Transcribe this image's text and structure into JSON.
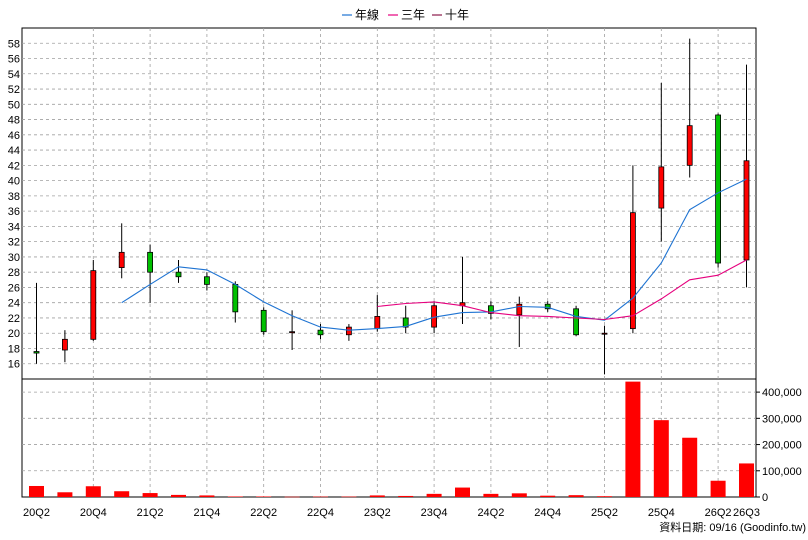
{
  "chart_data": {
    "type": "candlestick",
    "legend": [
      {
        "label": "年線",
        "color": "#1e73d2"
      },
      {
        "label": "三年",
        "color": "#e6007e"
      },
      {
        "label": "十年",
        "color": "#8b1a4b"
      }
    ],
    "source": "資料日期: 09/16  (Goodinfo.tw)",
    "price_axis": {
      "ylim": [
        14,
        60
      ],
      "ticks": [
        16,
        18,
        20,
        22,
        24,
        26,
        28,
        30,
        32,
        34,
        36,
        38,
        40,
        42,
        44,
        46,
        48,
        50,
        52,
        54,
        56,
        58
      ]
    },
    "volume_axis": {
      "ylim": [
        0,
        450000
      ],
      "ticks": [
        0,
        100000,
        200000,
        300000,
        400000
      ],
      "tick_labels": [
        "0",
        "100,000",
        "200,000",
        "300,000",
        "400,000"
      ]
    },
    "grid": true,
    "colors": {
      "up": "#ff0000",
      "down": "#00c000",
      "volume": "#ff0000",
      "grid": "#a0a0a0"
    },
    "x_tick_labels": [
      {
        "label": "20Q2",
        "index": 0
      },
      {
        "label": "20Q4",
        "index": 2
      },
      {
        "label": "21Q2",
        "index": 4
      },
      {
        "label": "21Q4",
        "index": 6
      },
      {
        "label": "22Q2",
        "index": 8
      },
      {
        "label": "22Q4",
        "index": 10
      },
      {
        "label": "23Q2",
        "index": 12
      },
      {
        "label": "23Q4",
        "index": 14
      },
      {
        "label": "24Q2",
        "index": 16
      },
      {
        "label": "24Q4",
        "index": 18
      },
      {
        "label": "25Q2",
        "index": 20
      },
      {
        "label": "25Q4",
        "index": 22
      },
      {
        "label": "26Q2",
        "index": 24
      },
      {
        "label": "26Q3",
        "index": 25
      }
    ],
    "candles": [
      {
        "period": "20Q2",
        "open": 17.6,
        "high": 26.6,
        "low": 16.0,
        "close": 17.4
      },
      {
        "period": "20Q3",
        "open": 17.8,
        "high": 20.4,
        "low": 16.2,
        "close": 19.2
      },
      {
        "period": "20Q4",
        "open": 19.2,
        "high": 29.6,
        "low": 19.0,
        "close": 28.2
      },
      {
        "period": "21Q1",
        "open": 28.6,
        "high": 34.4,
        "low": 27.2,
        "close": 30.6
      },
      {
        "period": "21Q2",
        "open": 30.6,
        "high": 31.6,
        "low": 24.0,
        "close": 28.0
      },
      {
        "period": "21Q3",
        "open": 28.0,
        "high": 29.6,
        "low": 26.6,
        "close": 27.4
      },
      {
        "period": "21Q4",
        "open": 27.4,
        "high": 28.0,
        "low": 25.6,
        "close": 26.4
      },
      {
        "period": "22Q1",
        "open": 26.4,
        "high": 26.8,
        "low": 21.4,
        "close": 22.8
      },
      {
        "period": "22Q2",
        "open": 23.0,
        "high": 23.4,
        "low": 19.8,
        "close": 20.2
      },
      {
        "period": "22Q3",
        "open": 20.2,
        "high": 23.0,
        "low": 17.8,
        "close": 20.2
      },
      {
        "period": "22Q4",
        "open": 20.4,
        "high": 21.2,
        "low": 19.2,
        "close": 19.8
      },
      {
        "period": "23Q1",
        "open": 19.8,
        "high": 21.2,
        "low": 19.0,
        "close": 20.8
      },
      {
        "period": "23Q2",
        "open": 20.6,
        "high": 25.0,
        "low": 20.2,
        "close": 22.2
      },
      {
        "period": "23Q3",
        "open": 22.0,
        "high": 23.6,
        "low": 20.0,
        "close": 20.8
      },
      {
        "period": "23Q4",
        "open": 20.8,
        "high": 24.2,
        "low": 20.0,
        "close": 23.6
      },
      {
        "period": "24Q1",
        "open": 23.6,
        "high": 30.0,
        "low": 21.2,
        "close": 24.0
      },
      {
        "period": "24Q2",
        "open": 23.6,
        "high": 24.2,
        "low": 21.8,
        "close": 22.6
      },
      {
        "period": "24Q3",
        "open": 22.4,
        "high": 24.8,
        "low": 18.2,
        "close": 23.8
      },
      {
        "period": "24Q4",
        "open": 23.8,
        "high": 24.2,
        "low": 22.8,
        "close": 23.2
      },
      {
        "period": "25Q1",
        "open": 23.2,
        "high": 23.6,
        "low": 19.6,
        "close": 19.8
      },
      {
        "period": "25Q2",
        "open": 20.0,
        "high": 21.0,
        "low": 14.6,
        "close": 20.0
      },
      {
        "period": "25Q3",
        "open": 20.6,
        "high": 42.0,
        "low": 20.0,
        "close": 35.8
      },
      {
        "period": "25Q4",
        "open": 36.4,
        "high": 52.8,
        "low": 32.0,
        "close": 41.8
      },
      {
        "period": "26Q1",
        "open": 42.0,
        "high": 58.6,
        "low": 40.4,
        "close": 47.2
      },
      {
        "period": "26Q2",
        "open": 48.6,
        "high": 48.8,
        "low": 28.6,
        "close": 29.2
      },
      {
        "period": "26Q3",
        "open": 29.6,
        "high": 55.2,
        "low": 26.0,
        "close": 42.6
      }
    ],
    "series": [
      {
        "name": "年線",
        "color": "#1e73d2",
        "start_index": 3,
        "values": [
          24.0,
          26.4,
          28.7,
          28.3,
          26.4,
          24.1,
          22.3,
          20.8,
          20.4,
          20.6,
          20.9,
          22.1,
          22.7,
          22.8,
          23.5,
          23.4,
          22.2,
          21.7,
          24.6,
          29.2,
          36.2,
          38.4,
          40.2
        ]
      },
      {
        "name": "三年",
        "color": "#e6007e",
        "start_index": 12,
        "values": [
          23.5,
          23.9,
          24.1,
          23.6,
          22.7,
          22.3,
          22.2,
          22.0,
          21.8,
          22.3,
          24.5,
          27.0,
          27.6,
          29.6
        ]
      }
    ],
    "volume": [
      42000,
      18000,
      41000,
      22000,
      15000,
      8000,
      6000,
      2000,
      2000,
      1000,
      1500,
      1500,
      6000,
      4000,
      12000,
      36000,
      12000,
      14000,
      5000,
      7000,
      3000,
      440000,
      293000,
      226000,
      62000,
      128000
    ]
  }
}
